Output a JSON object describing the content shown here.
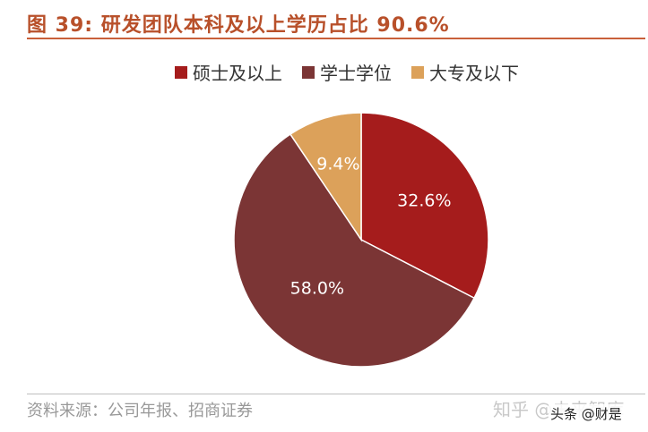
{
  "title": "图 39: 研发团队本科及以上学历占比 90.6%",
  "legend": [
    {
      "label": "硕士及以上",
      "color": "#a51c1c"
    },
    {
      "label": "学士学位",
      "color": "#7b3535"
    },
    {
      "label": "大专及以下",
      "color": "#dca15a"
    }
  ],
  "source": "资料来源：公司年报、招商证券",
  "watermarks": {
    "zhihu": "知乎 @未来智库",
    "toutiao": "头条 @财是"
  },
  "chart_data": {
    "type": "pie",
    "title": "图 39: 研发团队本科及以上学历占比 90.6%",
    "categories": [
      "硕士及以上",
      "学士学位",
      "大专及以下"
    ],
    "values": [
      32.6,
      58.0,
      9.4
    ],
    "labels": [
      "32.6%",
      "58.0%",
      "9.4%"
    ],
    "colors": [
      "#a51c1c",
      "#7b3535",
      "#dca15a"
    ],
    "start": "12 o'clock, clockwise",
    "legend_position": "top",
    "label_color": "#ffffff"
  }
}
